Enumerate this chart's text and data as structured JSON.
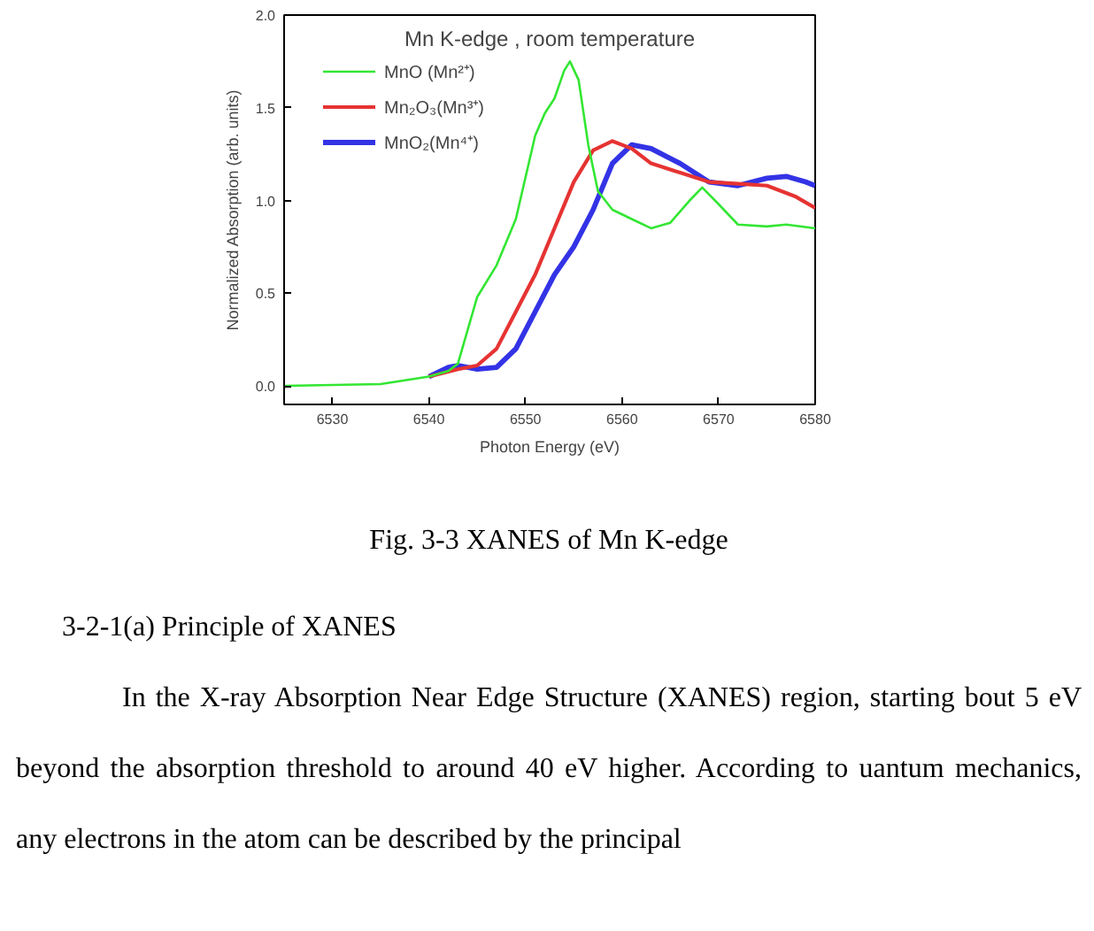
{
  "chart_data": {
    "type": "line",
    "title": "Mn K-edge , room temperature",
    "xlabel": "Photon Energy (eV)",
    "ylabel": "Normalized Absorption (arb. units)",
    "xlim": [
      6525,
      6580
    ],
    "xticks": [
      6530,
      6540,
      6550,
      6560,
      6570,
      6580
    ],
    "ylim": [
      -0.1,
      2.0
    ],
    "yticks": [
      {
        "value": 0,
        "label": "0.0"
      },
      {
        "value": 0.5,
        "label": "0.5"
      },
      {
        "value": 1,
        "label": "1.0"
      },
      {
        "value": 1.5,
        "label": "1.5"
      },
      {
        "value": 2,
        "label": "2.0"
      }
    ],
    "grid": false,
    "legend": "top left",
    "line_style": "solid",
    "series": [
      {
        "name": "MnO (Mn²⁺)",
        "color": "#33e633",
        "x": [
          6525,
          6535,
          6540,
          6542,
          6543,
          6544,
          6545,
          6547,
          6549,
          6551,
          6552,
          6553,
          6554,
          6554.6,
          6555.5,
          6556.5,
          6557.5,
          6559,
          6561,
          6563,
          6565,
          6567,
          6568.3,
          6570,
          6572,
          6575,
          6577,
          6580
        ],
        "values": [
          0,
          0.01,
          0.05,
          0.08,
          0.12,
          0.3,
          0.48,
          0.65,
          0.9,
          1.35,
          1.47,
          1.55,
          1.7,
          1.75,
          1.65,
          1.3,
          1.05,
          0.95,
          0.9,
          0.85,
          0.88,
          1.0,
          1.07,
          0.98,
          0.87,
          0.86,
          0.87,
          0.85
        ]
      },
      {
        "name": "Mn₂O₃(Mn³⁺)",
        "color": "#e63333",
        "x": [
          6540,
          6543,
          6545,
          6547,
          6549,
          6551,
          6553,
          6555,
          6557,
          6559,
          6561,
          6563,
          6566,
          6569,
          6572,
          6575,
          6578,
          6580
        ],
        "values": [
          0.05,
          0.09,
          0.11,
          0.2,
          0.4,
          0.6,
          0.85,
          1.1,
          1.27,
          1.32,
          1.28,
          1.2,
          1.15,
          1.1,
          1.09,
          1.08,
          1.02,
          0.96
        ]
      },
      {
        "name": "MnO₂(Mn⁴⁺)",
        "color": "#3333e6",
        "x": [
          6540,
          6542,
          6543,
          6545,
          6547,
          6549,
          6551,
          6553,
          6555,
          6557,
          6559,
          6561,
          6563,
          6566,
          6569,
          6572,
          6575,
          6577,
          6579,
          6580
        ],
        "values": [
          0.05,
          0.1,
          0.11,
          0.09,
          0.1,
          0.2,
          0.4,
          0.6,
          0.75,
          0.95,
          1.2,
          1.3,
          1.28,
          1.2,
          1.1,
          1.08,
          1.12,
          1.13,
          1.1,
          1.08
        ]
      }
    ],
    "annotations": [
      "Fig. 3-3    XANES of Mn K-edge",
      "3-2-1(a) Principle of XANES",
      "In the X-ray Absorption Near Edge Structure (XANES) region, starting bout 5 eV beyond the absorption threshold to around 40 eV higher. According to uantum mechanics, any electrons in the atom can be described by the principal"
    ]
  }
}
